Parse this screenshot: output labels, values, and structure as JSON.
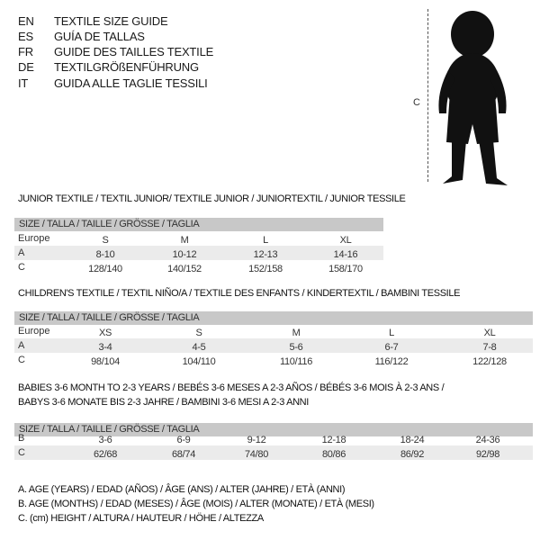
{
  "title_lines": [
    {
      "code": "EN",
      "text": "TEXTILE SIZE GUIDE"
    },
    {
      "code": "ES",
      "text": "GUÍA DE TALLAS"
    },
    {
      "code": "FR",
      "text": "GUIDE DES TAILLES TEXTILE"
    },
    {
      "code": "DE",
      "text": "TEXTILGRÖßENFÜHRUNG"
    },
    {
      "code": "IT",
      "text": "GUIDA ALLE TAGLIE TESSILI"
    }
  ],
  "figure": {
    "label": "C",
    "icon": "child-silhouette"
  },
  "size_header": "SIZE / TALLA / TAILLE / GRÖSSE / TAGLIA",
  "junior": {
    "title": "JUNIOR TEXTILE / TEXTIL JUNIOR/ TEXTILE JUNIOR / JUNIORTEXTIL / JUNIOR TESSILE",
    "rows": [
      {
        "label": "Europe",
        "values": [
          "S",
          "M",
          "L",
          "XL"
        ]
      },
      {
        "label": "A",
        "values": [
          "8-10",
          "10-12",
          "12-13",
          "14-16"
        ]
      },
      {
        "label": "C",
        "values": [
          "128/140",
          "140/152",
          "152/158",
          "158/170"
        ]
      }
    ]
  },
  "children": {
    "title": "CHILDREN'S TEXTILE / TEXTIL NIÑO/A / TEXTILE DES ENFANTS / KINDERTEXTIL / BAMBINI TESSILE",
    "rows": [
      {
        "label": "Europe",
        "values": [
          "XS",
          "S",
          "M",
          "L",
          "XL"
        ]
      },
      {
        "label": "A",
        "values": [
          "3-4",
          "4-5",
          "5-6",
          "6-7",
          "7-8"
        ]
      },
      {
        "label": "C",
        "values": [
          "98/104",
          "104/110",
          "110/116",
          "116/122",
          "122/128"
        ]
      }
    ]
  },
  "babies": {
    "title_line1": "BABIES 3-6 MONTH TO 2-3 YEARS / BEBÉS 3-6 MESES A 2-3 AÑOS / BÉBÉS 3-6 MOIS À 2-3 ANS /",
    "title_line2": "BABYS 3-6 MONATE BIS 2-3 JAHRE / BAMBINI 3-6 MESI A 2-3 ANNI",
    "rows": [
      {
        "label": "B",
        "values": [
          "3-6",
          "6-9",
          "9-12",
          "12-18",
          "18-24",
          "24-36"
        ]
      },
      {
        "label": "C",
        "values": [
          "62/68",
          "68/74",
          "74/80",
          "80/86",
          "86/92",
          "92/98"
        ]
      }
    ]
  },
  "notes": [
    "A. AGE (YEARS) / EDAD (AÑOS) / ÂGE (ANS) / ALTER (JAHRE) / ETÀ (ANNI)",
    "B. AGE (MONTHS) / EDAD (MESES) / ÂGE (MOIS) / ALTER (MONATE) / ETÀ (MESI)",
    "C. (cm) HEIGHT / ALTURA / HAUTEUR / HÖHE / ALTEZZA"
  ]
}
